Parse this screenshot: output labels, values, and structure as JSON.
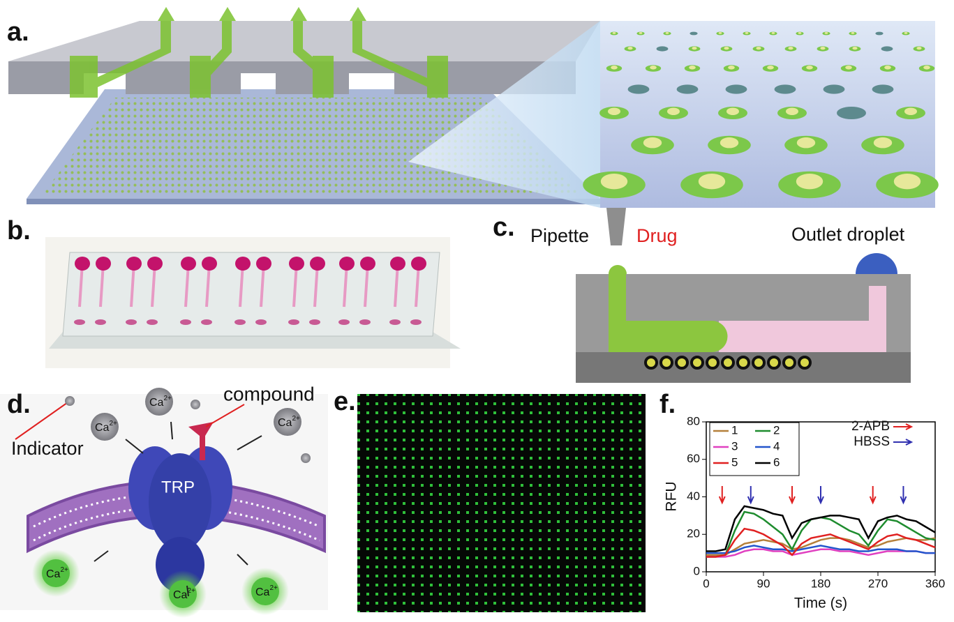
{
  "panels": {
    "a": "a.",
    "b": "b.",
    "c": "c.",
    "d": "d.",
    "e": "e.",
    "f": "f."
  },
  "panel_c": {
    "pipette": "Pipette",
    "drug": "Drug",
    "outlet": "Outlet droplet"
  },
  "panel_d": {
    "indicator": "Indicator",
    "compound": "compound",
    "channel": "TRP",
    "ion": {
      "symbol": "Ca",
      "charge": "2+"
    }
  },
  "chart_data": {
    "type": "line",
    "x_label": "Time (s)",
    "y_label": "RFU",
    "x": [
      0,
      15,
      30,
      45,
      60,
      75,
      90,
      105,
      120,
      135,
      150,
      165,
      180,
      195,
      210,
      225,
      240,
      255,
      270,
      285,
      300,
      315,
      330,
      345,
      360
    ],
    "series": [
      {
        "name": "1",
        "color": "#b5803a",
        "values": [
          9,
          9,
          9,
          12,
          15,
          16,
          17,
          16,
          15,
          12,
          13,
          15,
          17,
          18,
          18,
          17,
          15,
          13,
          14,
          16,
          17,
          18,
          17,
          17,
          18
        ]
      },
      {
        "name": "2",
        "color": "#1e8c2e",
        "values": [
          8,
          8,
          9,
          22,
          32,
          31,
          28,
          24,
          20,
          12,
          22,
          28,
          29,
          28,
          25,
          22,
          20,
          14,
          22,
          28,
          27,
          24,
          21,
          18,
          17
        ]
      },
      {
        "name": "3",
        "color": "#e040c0",
        "values": [
          8,
          8,
          8,
          9,
          11,
          12,
          12,
          11,
          11,
          9,
          10,
          11,
          12,
          12,
          11,
          11,
          10,
          9,
          10,
          11,
          11,
          11,
          11,
          10,
          10
        ]
      },
      {
        "name": "4",
        "color": "#2255cc",
        "values": [
          10,
          10,
          10,
          11,
          13,
          14,
          13,
          12,
          12,
          11,
          12,
          13,
          14,
          13,
          12,
          12,
          11,
          11,
          12,
          12,
          12,
          11,
          11,
          10,
          10
        ]
      },
      {
        "name": "5",
        "color": "#e02020",
        "values": [
          8,
          8,
          9,
          17,
          23,
          22,
          20,
          17,
          14,
          9,
          15,
          18,
          19,
          20,
          18,
          16,
          14,
          12,
          16,
          19,
          20,
          18,
          17,
          15,
          13
        ]
      },
      {
        "name": "6",
        "color": "#000000",
        "values": [
          11,
          11,
          12,
          28,
          35,
          34,
          33,
          31,
          30,
          18,
          26,
          28,
          29,
          30,
          30,
          29,
          28,
          18,
          27,
          29,
          30,
          28,
          27,
          24,
          21
        ]
      }
    ],
    "arrows": [
      {
        "label": "2-APB",
        "color": "#e02020",
        "x": [
          25,
          135,
          262
        ]
      },
      {
        "label": "HBSS",
        "color": "#3030b0",
        "x": [
          70,
          180,
          310
        ]
      }
    ],
    "xlim": [
      0,
      360
    ],
    "xticks": [
      0,
      90,
      180,
      270,
      360
    ],
    "ylim": [
      0,
      80
    ],
    "yticks": [
      0,
      20,
      40,
      60,
      80
    ]
  }
}
